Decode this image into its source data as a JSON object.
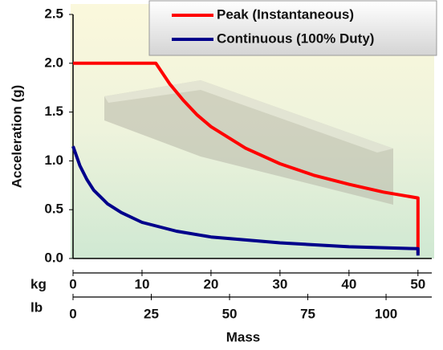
{
  "chart_data": {
    "type": "line",
    "ylabel": "Acceleration (g)",
    "xlabel": "Mass",
    "x_unit_label": "kg",
    "x2_unit_label": "lb",
    "xlim": [
      0,
      52
    ],
    "xticks": [
      0,
      10,
      20,
      30,
      40,
      50
    ],
    "x2lim": [
      0,
      114.6
    ],
    "x2ticks": [
      0,
      25,
      50,
      75,
      100
    ],
    "ylim": [
      0,
      2.5
    ],
    "yticks": [
      {
        "value": 0,
        "label": "0.0"
      },
      0.5,
      {
        "value": 1,
        "label": "1.0"
      },
      1.5,
      {
        "value": 2,
        "label": "2.0"
      },
      2.5
    ],
    "legend": "top-right",
    "series": [
      {
        "name": "Peak (Instantaneous)",
        "color": "#ff0000",
        "x": [
          0,
          12,
          14,
          16,
          18,
          20,
          25,
          30,
          35,
          40,
          45,
          50,
          50
        ],
        "values": [
          2,
          2,
          1.79,
          1.62,
          1.47,
          1.35,
          1.13,
          0.97,
          0.85,
          0.76,
          0.68,
          0.62,
          0.05
        ]
      },
      {
        "name": "Continuous (100% Duty)",
        "color": "#00008b",
        "x": [
          0,
          1,
          2,
          3,
          5,
          7,
          10,
          15,
          20,
          30,
          40,
          50,
          50
        ],
        "values": [
          1.15,
          0.95,
          0.81,
          0.7,
          0.56,
          0.47,
          0.37,
          0.28,
          0.22,
          0.16,
          0.12,
          0.1,
          0.03
        ]
      }
    ]
  }
}
